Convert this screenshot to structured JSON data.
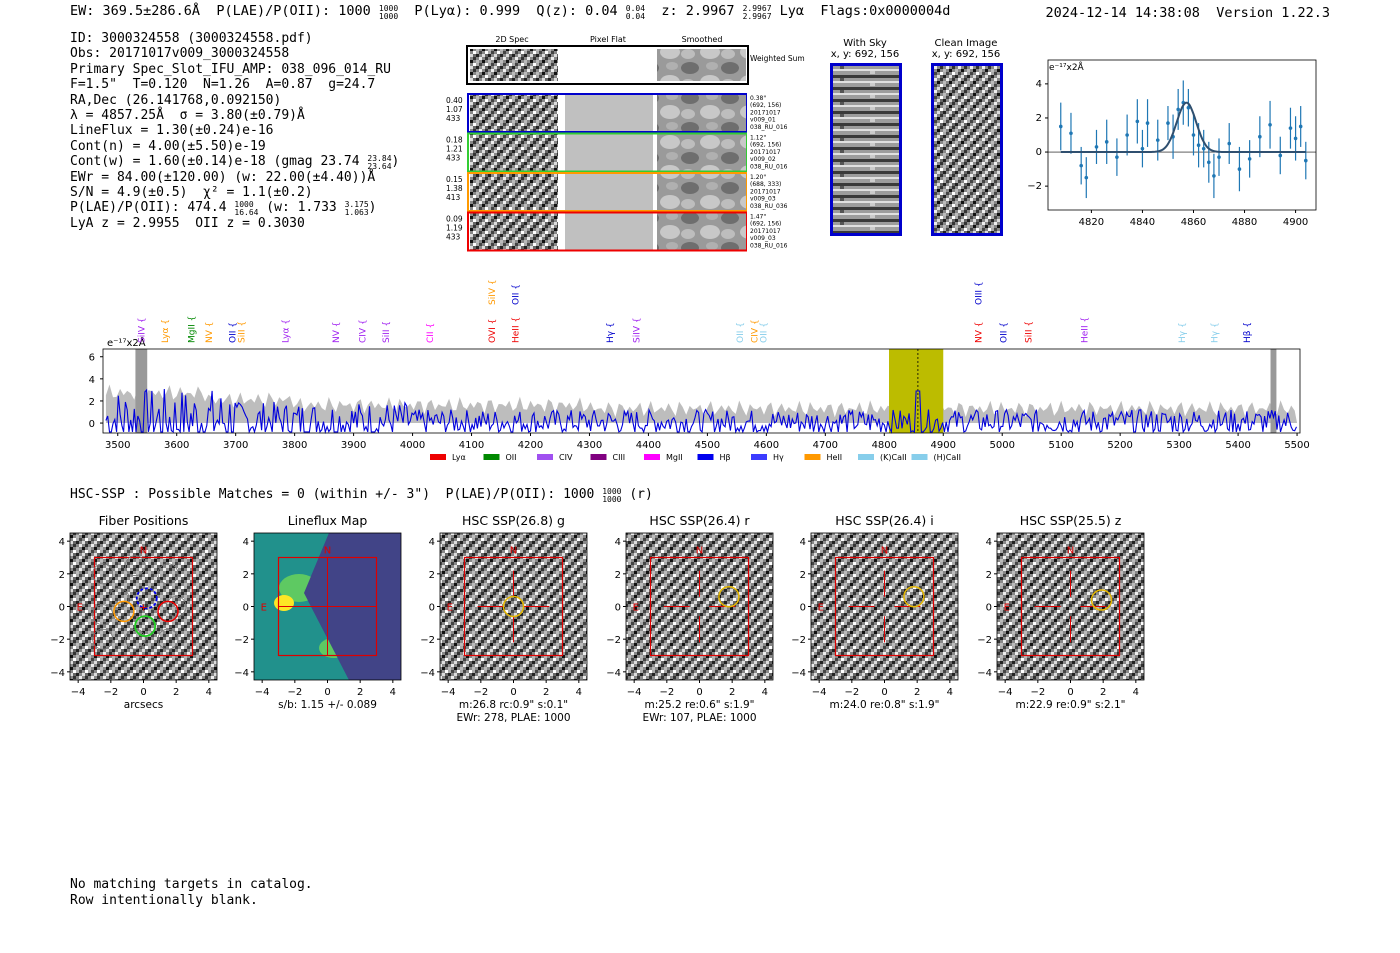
{
  "header": {
    "ew": "EW: 369.5±286.6Å",
    "plae_label": "P(LAE)/P(OII): 1000",
    "plae_hi": "1000",
    "plae_lo": "1000",
    "plya": "P(Lyα): 0.999",
    "qz_label": "Q(z): 0.04",
    "qz_hi": "0.04",
    "qz_lo": "0.04",
    "z_label": "z: 2.9967",
    "z_hi": "2.9967",
    "z_lo": "2.9967",
    "line": "Lyα",
    "flags": "Flags:0x0000004d",
    "timestamp": "2024-12-14 14:38:08",
    "version": "Version 1.22.3"
  },
  "info": {
    "l1": "ID: 3000324558 (3000324558.pdf)",
    "l2": "Obs: 20171017v009_3000324558",
    "l3": "Primary Spec_Slot_IFU_AMP: 038_096_014_RU",
    "l4": "F=1.5\"  T=0.120  N=1.26  A=0.87  g=24.7",
    "l5": "RA,Dec (26.141768,0.092150)",
    "l6": "λ = 4857.25Å  σ = 3.80(±0.79)Å",
    "l7": "LineFlux = 1.30(±0.24)e-16",
    "l8": "Cont(n) = 4.00(±5.50)e-19",
    "l9a": "Cont(w) = 1.60(±0.14)e-18 (gmag 23.74",
    "l9hi": "23.84",
    "l9lo": "23.64",
    "l9b": ")",
    "l10": "EWr = 84.00(±120.00) (w: 22.00(±4.40))Å",
    "l11": "S/N = 4.9(±0.5)  χ² = 1.1(±0.2)",
    "l12a": "P(LAE)/P(OII): 474.4",
    "l12hi": "1000",
    "l12lo": "16.64",
    "l12b": "(w: 1.733",
    "l12hi2": "3.175",
    "l12lo2": "1.063",
    "l12c": ")",
    "l13": "LyA z = 2.9955  OII z = 0.3030"
  },
  "cutouts": {
    "col1": "2D Spec",
    "col2": "Pixel Flat",
    "col3": "Smoothed",
    "weighted": "Weighted Sum",
    "rows": [
      {
        "color": "#0000cc",
        "l": [
          "0.40",
          "1.07",
          "433"
        ],
        "r": [
          "0.38\"",
          "(692, 156)",
          "20171017",
          "v009_01",
          "038_RU_016"
        ]
      },
      {
        "color": "#33cc33",
        "l": [
          "0.18",
          "1.21",
          "433"
        ],
        "r": [
          "1.12\"",
          "(692, 156)",
          "20171017",
          "v009_02",
          "038_RU_016"
        ]
      },
      {
        "color": "#ff9900",
        "l": [
          "0.15",
          "1.38",
          "413"
        ],
        "r": [
          "1.20\"",
          "(688, 333)",
          "20171017",
          "v009_03",
          "038_RU_036"
        ]
      },
      {
        "color": "#ee0000",
        "l": [
          "0.09",
          "1.19",
          "433"
        ],
        "r": [
          "1.47\"",
          "(692, 156)",
          "20171017",
          "v009_03",
          "038_RU_016"
        ]
      }
    ]
  },
  "sky": {
    "t1": "With Sky",
    "t2": "x, y: 692, 156"
  },
  "clean": {
    "t1": "Clean Image",
    "t2": "x, y: 692, 156"
  },
  "zoom": {
    "units": "e⁻¹⁷x2Å",
    "xticks": [
      "4820",
      "4840",
      "4860",
      "4880",
      "4900"
    ],
    "yticks": [
      "4",
      "2",
      "0",
      "−2"
    ],
    "x": [
      4808,
      4812,
      4816,
      4818,
      4822,
      4826,
      4830,
      4834,
      4838,
      4840,
      4842,
      4846,
      4850,
      4852,
      4854,
      4856,
      4858,
      4860,
      4862,
      4864,
      4866,
      4868,
      4870,
      4874,
      4878,
      4882,
      4886,
      4890,
      4894,
      4898,
      4900,
      4902,
      4904
    ],
    "y": [
      1.5,
      1.1,
      -0.8,
      -1.5,
      0.3,
      0.6,
      -0.3,
      1.0,
      1.8,
      0.2,
      1.7,
      0.7,
      1.7,
      0.9,
      2.5,
      2.9,
      2.6,
      1.0,
      0.4,
      0.2,
      -0.6,
      -1.4,
      -0.3,
      0.5,
      -1.0,
      -0.4,
      0.9,
      1.6,
      -0.2,
      1.4,
      0.8,
      1.5,
      -0.5
    ],
    "err": [
      1.4,
      1.2,
      1.1,
      1.2,
      1.0,
      1.3,
      1.1,
      1.2,
      1.3,
      1.1,
      1.4,
      1.2,
      1.0,
      1.3,
      1.2,
      1.3,
      1.1,
      1.2,
      1.3,
      1.1,
      1.2,
      1.3,
      1.1,
      1.2,
      1.3,
      1.1,
      1.2,
      1.4,
      1.1,
      1.2,
      1.3,
      1.2,
      1.1
    ]
  },
  "spectrum": {
    "units": "e⁻¹⁷x2Å",
    "xticks": [
      "3500",
      "3600",
      "3700",
      "3800",
      "3900",
      "4000",
      "4100",
      "4200",
      "4300",
      "4400",
      "4500",
      "4600",
      "4700",
      "4800",
      "4900",
      "5000",
      "5100",
      "5200",
      "5300",
      "5400",
      "5500"
    ],
    "yticks": [
      "6",
      "4",
      "2",
      "0"
    ],
    "lines": [
      {
        "n": "SiIV",
        "w": 3545,
        "c": "#a020f0",
        "row": 1
      },
      {
        "n": "Lyα",
        "w": 3585,
        "c": "#ff9900",
        "row": 1
      },
      {
        "n": "MgII",
        "w": 3630,
        "c": "#008800",
        "row": 1
      },
      {
        "n": "NV",
        "w": 3660,
        "c": "#ff9900",
        "row": 1
      },
      {
        "n": "OII",
        "w": 3700,
        "c": "#0000cc",
        "row": 1
      },
      {
        "n": "SiII",
        "w": 3715,
        "c": "#ff9900",
        "row": 1
      },
      {
        "n": "Lyα",
        "w": 3790,
        "c": "#a020f0",
        "row": 1
      },
      {
        "n": "NV",
        "w": 3875,
        "c": "#a020f0",
        "row": 1
      },
      {
        "n": "CIV",
        "w": 3920,
        "c": "#a020f0",
        "row": 1
      },
      {
        "n": "SiII",
        "w": 3960,
        "c": "#a020f0",
        "row": 1
      },
      {
        "n": "CII",
        "w": 4035,
        "c": "#ff00ff",
        "row": 1
      },
      {
        "n": "OVI",
        "w": 4140,
        "c": "#ee0000",
        "row": 1
      },
      {
        "n": "SiIV",
        "w": 4140,
        "c": "#ff9900",
        "row": 0
      },
      {
        "n": "OII",
        "w": 4180,
        "c": "#0000cc",
        "row": 0
      },
      {
        "n": "HeII",
        "w": 4180,
        "c": "#ee0000",
        "row": 1
      },
      {
        "n": "Hγ",
        "w": 4340,
        "c": "#0000cc",
        "row": 1
      },
      {
        "n": "SiIV",
        "w": 4385,
        "c": "#a020f0",
        "row": 1
      },
      {
        "n": "OII",
        "w": 4560,
        "c": "#87ceeb",
        "row": 1
      },
      {
        "n": "CIV",
        "w": 4585,
        "c": "#ff9900",
        "row": 1
      },
      {
        "n": "OII",
        "w": 4600,
        "c": "#87ceeb",
        "row": 1
      },
      {
        "n": "OIII",
        "w": 4965,
        "c": "#0000cc",
        "row": 0
      },
      {
        "n": "NV",
        "w": 4965,
        "c": "#ee0000",
        "row": 1
      },
      {
        "n": "OII",
        "w": 5007,
        "c": "#0000cc",
        "row": 1
      },
      {
        "n": "SiII",
        "w": 5050,
        "c": "#ee0000",
        "row": 1
      },
      {
        "n": "HeII",
        "w": 5145,
        "c": "#a020f0",
        "row": 1
      },
      {
        "n": "Hγ",
        "w": 5310,
        "c": "#87ceeb",
        "row": 1
      },
      {
        "n": "Hγ",
        "w": 5365,
        "c": "#87ceeb",
        "row": 1
      },
      {
        "n": "Hβ",
        "w": 5420,
        "c": "#0000cc",
        "row": 1
      }
    ],
    "legend": [
      {
        "n": "Lyα",
        "c": "#ee0000"
      },
      {
        "n": "OII",
        "c": "#008800"
      },
      {
        "n": "CIV",
        "c": "#a050f0"
      },
      {
        "n": "CIII",
        "c": "#800080"
      },
      {
        "n": "MgII",
        "c": "#ff00ff"
      },
      {
        "n": "Hβ",
        "c": "#0000ee"
      },
      {
        "n": "Hγ",
        "c": "#3c3cff"
      },
      {
        "n": "HeII",
        "c": "#ff9900"
      },
      {
        "n": "(K)CaII",
        "c": "#87ceeb"
      },
      {
        "n": "(H)CaII",
        "c": "#87ceeb"
      }
    ]
  },
  "hsc": {
    "line_a": "HSC-SSP : Possible Matches = 0 (within +/- 3\")  P(LAE)/P(OII): 1000",
    "line_hi": "1000",
    "line_lo": "1000",
    "line_b": "(r)",
    "panels": [
      {
        "title": "Fiber Positions",
        "b1": "arcsecs",
        "b2": ""
      },
      {
        "title": "Lineflux Map",
        "b1": "s/b: 1.15 +/- 0.089",
        "b2": ""
      },
      {
        "title": "HSC SSP(26.8) g",
        "b1": "m:26.8 rc:0.9\"  s:0.1\"",
        "b2": "EWr: 278, PLAE: 1000"
      },
      {
        "title": "HSC SSP(26.4) r",
        "b1": "m:25.2  re:0.6\"  s:1.9\"",
        "b2": "EWr: 107, PLAE: 1000"
      },
      {
        "title": "HSC SSP(26.4) i",
        "b1": "m:24.0  re:0.8\"  s:1.9\"",
        "b2": ""
      },
      {
        "title": "HSC SSP(25.5) z",
        "b1": "m:22.9  re:0.9\"  s:2.1\"",
        "b2": ""
      }
    ],
    "ticks": [
      "−4",
      "−2",
      "0",
      "2",
      "4"
    ],
    "yticks": [
      "4",
      "2",
      "0",
      "−2",
      "−4"
    ],
    "n": "N",
    "e": "E"
  },
  "notes": {
    "l1": "No matching targets in catalog.",
    "l2": "Row intentionally blank."
  }
}
